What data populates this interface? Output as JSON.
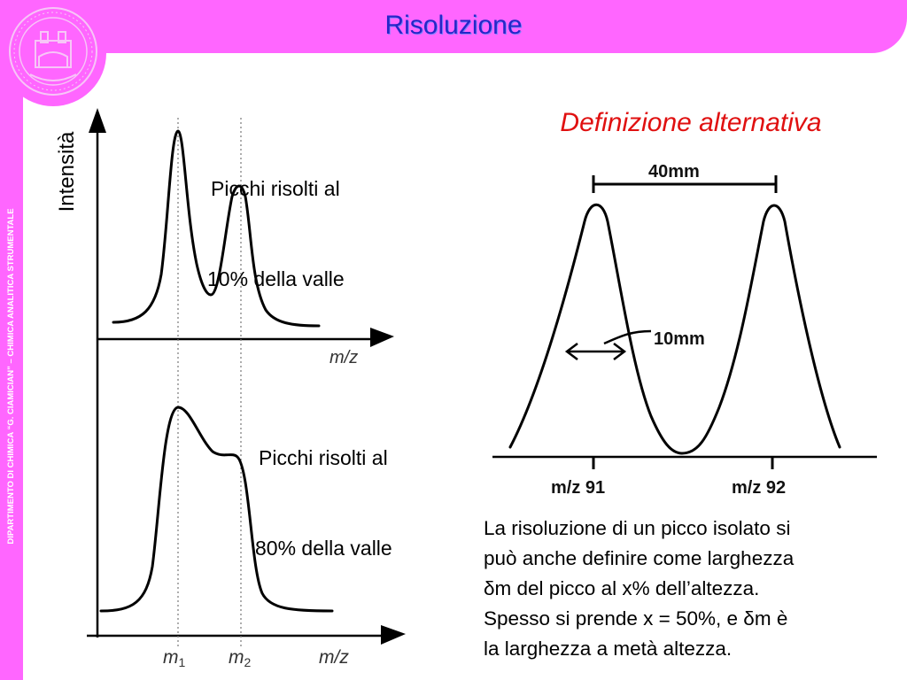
{
  "slide": {
    "title": "Risoluzione",
    "side_text": "DIPARTIMENTO DI CHIMICA “G. CIAMICIAN” – CHIMICA ANALITICA STRUMENTALE"
  },
  "colors": {
    "accent": "#ff66ff",
    "title": "#2626c8",
    "alt_title": "#e01010"
  },
  "left_diagram": {
    "ylabel": "Intensità",
    "top_caption": [
      "Picchi risolti al",
      "10% della valle"
    ],
    "top_axis_label": "m/z",
    "bottom_caption": [
      "Picchi risolti al",
      "80% della valle"
    ],
    "bottom_axis_labels": {
      "m1": "m",
      "m1_sub": "1",
      "m2": "m",
      "m2_sub": "2",
      "mz": "m/z"
    }
  },
  "right_diagram": {
    "title": "Definizione alternativa",
    "separation_label": "40mm",
    "width_label": "10mm",
    "peak1_label": "m/z 91",
    "peak2_label": "m/z 92"
  },
  "paragraph": {
    "lines": [
      "La risoluzione di un picco isolato si",
      "può anche definire come larghezza",
      "δm del picco al x% dell’altezza.",
      "Spesso si prende x = 50%, e δm è",
      "la larghezza a metà altezza."
    ]
  }
}
